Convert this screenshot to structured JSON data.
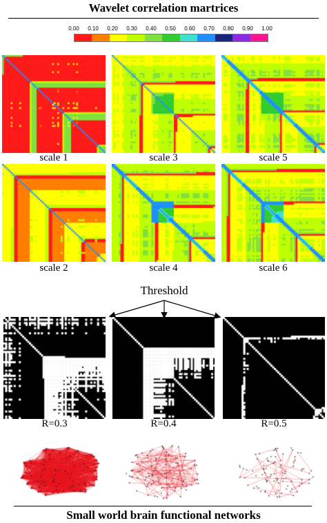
{
  "title_top": "Wavelet correlation martrices",
  "colorbar": {
    "ticks": [
      "0.00",
      "0.10",
      "0.20",
      "0.30",
      "0.40",
      "0.50",
      "0.60",
      "0.70",
      "0.80",
      "0.90",
      "1.00"
    ],
    "colors": [
      "#ff1a1a",
      "#ff7f00",
      "#ffff00",
      "#bfff00",
      "#80e040",
      "#33cc33",
      "#40e0d0",
      "#1e90ff",
      "#1a237e",
      "#8a2be2",
      "#ff1493"
    ]
  },
  "matrices": [
    {
      "label": "scale 1",
      "mode": "red"
    },
    {
      "label": "scale 2",
      "mode": "yellow"
    },
    {
      "label": "scale 3",
      "mode": "green"
    },
    {
      "label": "scale 4",
      "mode": "blue"
    },
    {
      "label": "scale 5",
      "mode": "green2"
    },
    {
      "label": "scale 6",
      "mode": "blue2"
    }
  ],
  "threshold_label": "Threshold",
  "binary_matrices": [
    {
      "label": "R=0.3"
    },
    {
      "label": "R=0.4"
    },
    {
      "label": "R=0.5"
    }
  ],
  "title_bottom": "Small world brain functional networks"
}
